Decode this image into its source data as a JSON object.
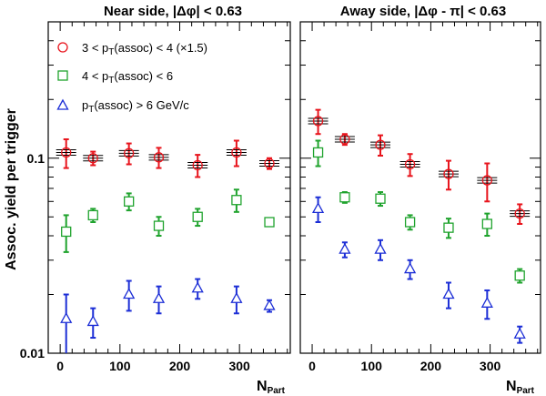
{
  "chart_data": [
    {
      "type": "scatter",
      "title": "Near side, |Δφ| < 0.63",
      "xlabel": "N",
      "xlabel_sub": "Part",
      "ylabel": "Assoc. yield per trigger",
      "xlim": [
        -20,
        385
      ],
      "ylim": [
        0.01,
        0.5
      ],
      "yscale": "log",
      "xticks": [
        "0",
        "100",
        "200",
        "300"
      ],
      "yticks": [
        "0.01",
        "0.1"
      ],
      "legend": {
        "placement": "top-left",
        "entries": [
          {
            "pre": "3 < p",
            "sub": "T",
            "post": "(assoc) < 4  (×1.5)"
          },
          {
            "pre": "4 < p",
            "sub": "T",
            "post": "(assoc) < 6"
          },
          {
            "pre": "p",
            "sub": "T",
            "post": "(assoc) > 6 GeV/c"
          }
        ]
      },
      "series": [
        {
          "marker": "circle",
          "color": "#e8141c",
          "x": [
            10,
            55,
            115,
            165,
            230,
            295,
            350
          ],
          "y": [
            0.107,
            0.1,
            0.106,
            0.101,
            0.092,
            0.107,
            0.094
          ],
          "err": [
            0.018,
            0.008,
            0.013,
            0.012,
            0.012,
            0.016,
            0.006
          ],
          "syst": true
        },
        {
          "marker": "square",
          "color": "#1fa32d",
          "x": [
            10,
            55,
            115,
            165,
            230,
            295,
            350
          ],
          "y": [
            0.042,
            0.051,
            0.06,
            0.045,
            0.05,
            0.061,
            0.047
          ],
          "err": [
            0.009,
            0.004,
            0.006,
            0.005,
            0.005,
            0.008,
            0.002
          ],
          "syst": false
        },
        {
          "marker": "triangle",
          "color": "#1c2ed6",
          "x": [
            10,
            55,
            115,
            165,
            230,
            295,
            350
          ],
          "y": [
            0.015,
            0.0145,
            0.02,
            0.019,
            0.0215,
            0.019,
            0.0175
          ],
          "err": [
            0.005,
            0.0025,
            0.0035,
            0.003,
            0.0025,
            0.003,
            0.0012
          ],
          "syst": false
        }
      ]
    },
    {
      "type": "scatter",
      "title": "Away side, |Δφ - π| < 0.63",
      "xlabel": "N",
      "xlabel_sub": "Part",
      "xlim": [
        -20,
        385
      ],
      "ylim": [
        0.01,
        0.5
      ],
      "yscale": "log",
      "xticks": [
        "0",
        "100",
        "200",
        "300"
      ],
      "series": [
        {
          "marker": "circle",
          "color": "#e8141c",
          "x": [
            10,
            55,
            115,
            165,
            230,
            295,
            350
          ],
          "y": [
            0.155,
            0.125,
            0.117,
            0.093,
            0.083,
            0.077,
            0.052
          ],
          "err": [
            0.022,
            0.008,
            0.014,
            0.012,
            0.014,
            0.017,
            0.006
          ],
          "syst": true
        },
        {
          "marker": "square",
          "color": "#1fa32d",
          "x": [
            10,
            55,
            115,
            165,
            230,
            295,
            350
          ],
          "y": [
            0.107,
            0.063,
            0.062,
            0.047,
            0.044,
            0.046,
            0.025
          ],
          "err": [
            0.016,
            0.004,
            0.005,
            0.004,
            0.005,
            0.006,
            0.002
          ],
          "syst": false
        },
        {
          "marker": "triangle",
          "color": "#1c2ed6",
          "x": [
            10,
            55,
            115,
            165,
            230,
            295,
            350
          ],
          "y": [
            0.055,
            0.034,
            0.034,
            0.027,
            0.02,
            0.018,
            0.0125
          ],
          "err": [
            0.008,
            0.003,
            0.004,
            0.003,
            0.003,
            0.003,
            0.0012
          ],
          "syst": false
        }
      ]
    }
  ]
}
